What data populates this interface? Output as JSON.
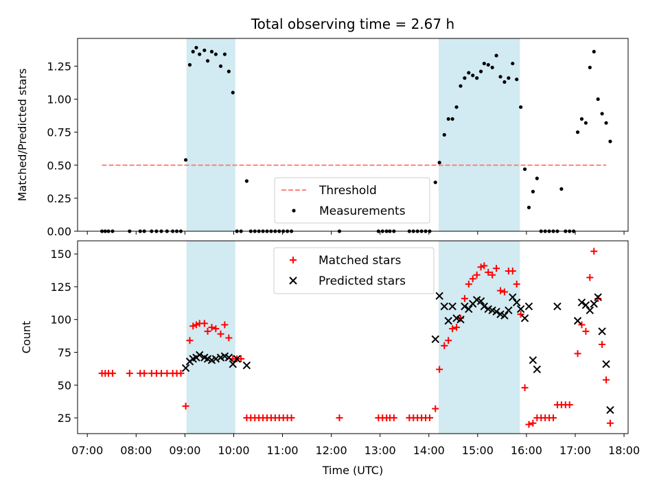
{
  "figure": {
    "title": "Total observing time = 2.67 h",
    "xlabel": "Time (UTC)"
  },
  "colors": {
    "shade": "#add8e6",
    "threshold": "#ff7f7f",
    "matched": "#ff0000",
    "predicted": "#000000",
    "measurement": "#000000"
  },
  "x_ticks": [
    "07:00",
    "08:00",
    "09:00",
    "10:00",
    "11:00",
    "12:00",
    "13:00",
    "14:00",
    "15:00",
    "16:00",
    "17:00",
    "18:00"
  ],
  "shaded_intervals_utc": [
    [
      "09:02",
      "10:02"
    ],
    [
      "14:12",
      "15:52"
    ]
  ],
  "chart_data": [
    {
      "type": "scatter",
      "ylabel": "Matched/Predicted stars",
      "xlim": [
        "06:48",
        "18:05"
      ],
      "ylim": [
        0,
        1.46
      ],
      "yticks": [
        "0.00",
        "0.25",
        "0.50",
        "0.75",
        "1.00",
        "1.25"
      ],
      "legend": {
        "placement": "lower center",
        "entries": [
          "Threshold",
          "Measurements"
        ]
      },
      "threshold": {
        "name": "Threshold",
        "value": 0.5,
        "x_range": [
          "07:18",
          "17:38"
        ]
      },
      "series": [
        {
          "name": "Measurements",
          "marker": "dot",
          "points": [
            [
              "07:18",
              0
            ],
            [
              "07:22",
              0
            ],
            [
              "07:26",
              0
            ],
            [
              "07:31",
              0
            ],
            [
              "07:52",
              0
            ],
            [
              "08:05",
              0
            ],
            [
              "08:10",
              0
            ],
            [
              "08:19",
              0
            ],
            [
              "08:25",
              0
            ],
            [
              "08:31",
              0
            ],
            [
              "08:38",
              0
            ],
            [
              "08:45",
              0
            ],
            [
              "08:50",
              0
            ],
            [
              "08:55",
              0
            ],
            [
              "09:01",
              0.54
            ],
            [
              "09:06",
              1.26
            ],
            [
              "09:10",
              1.36
            ],
            [
              "09:14",
              1.39
            ],
            [
              "09:18",
              1.34
            ],
            [
              "09:24",
              1.37
            ],
            [
              "09:28",
              1.29
            ],
            [
              "09:33",
              1.36
            ],
            [
              "09:38",
              1.34
            ],
            [
              "09:44",
              1.25
            ],
            [
              "09:49",
              1.34
            ],
            [
              "09:54",
              1.21
            ],
            [
              "09:59",
              1.05
            ],
            [
              "10:04",
              0
            ],
            [
              "10:09",
              0
            ],
            [
              "10:16",
              0.38
            ],
            [
              "10:21",
              0
            ],
            [
              "10:26",
              0
            ],
            [
              "10:31",
              0
            ],
            [
              "10:36",
              0
            ],
            [
              "10:41",
              0
            ],
            [
              "10:46",
              0
            ],
            [
              "10:51",
              0
            ],
            [
              "10:56",
              0
            ],
            [
              "11:01",
              0
            ],
            [
              "11:06",
              0
            ],
            [
              "11:11",
              0
            ],
            [
              "12:10",
              0
            ],
            [
              "12:58",
              0
            ],
            [
              "13:03",
              0
            ],
            [
              "13:08",
              0
            ],
            [
              "13:12",
              0
            ],
            [
              "13:17",
              0
            ],
            [
              "13:36",
              0
            ],
            [
              "13:41",
              0
            ],
            [
              "13:46",
              0
            ],
            [
              "13:51",
              0
            ],
            [
              "13:56",
              0
            ],
            [
              "14:01",
              0
            ],
            [
              "14:08",
              0.37
            ],
            [
              "14:13",
              0.52
            ],
            [
              "14:19",
              0.73
            ],
            [
              "14:24",
              0.85
            ],
            [
              "14:29",
              0.85
            ],
            [
              "14:34",
              0.94
            ],
            [
              "14:39",
              1.1
            ],
            [
              "14:44",
              1.16
            ],
            [
              "14:49",
              1.2
            ],
            [
              "14:54",
              1.18
            ],
            [
              "14:59",
              1.16
            ],
            [
              "15:04",
              1.21
            ],
            [
              "15:08",
              1.27
            ],
            [
              "15:13",
              1.26
            ],
            [
              "15:18",
              1.24
            ],
            [
              "15:23",
              1.33
            ],
            [
              "15:28",
              1.17
            ],
            [
              "15:33",
              1.13
            ],
            [
              "15:38",
              1.16
            ],
            [
              "15:43",
              1.27
            ],
            [
              "15:48",
              1.15
            ],
            [
              "15:53",
              0.94
            ],
            [
              "15:58",
              0.47
            ],
            [
              "16:03",
              0.18
            ],
            [
              "16:08",
              0.3
            ],
            [
              "16:13",
              0.4
            ],
            [
              "16:18",
              0
            ],
            [
              "16:23",
              0
            ],
            [
              "16:28",
              0
            ],
            [
              "16:33",
              0
            ],
            [
              "16:38",
              0
            ],
            [
              "16:43",
              0.32
            ],
            [
              "16:48",
              0
            ],
            [
              "16:53",
              0
            ],
            [
              "16:58",
              0
            ],
            [
              "17:03",
              0.75
            ],
            [
              "17:08",
              0.85
            ],
            [
              "17:13",
              0.82
            ],
            [
              "17:18",
              1.24
            ],
            [
              "17:23",
              1.36
            ],
            [
              "17:28",
              1.0
            ],
            [
              "17:33",
              0.89
            ],
            [
              "17:38",
              0.82
            ],
            [
              "17:43",
              0.68
            ]
          ]
        }
      ]
    },
    {
      "type": "scatter",
      "ylabel": "Count",
      "xlim": [
        "06:48",
        "18:05"
      ],
      "ylim": [
        13,
        160
      ],
      "yticks": [
        "25",
        "50",
        "75",
        "100",
        "125",
        "150"
      ],
      "legend": {
        "placement": "upper center",
        "entries": [
          "Matched stars",
          "Predicted stars"
        ]
      },
      "series": [
        {
          "name": "Matched stars",
          "marker": "plus",
          "points": [
            [
              "07:18",
              59
            ],
            [
              "07:22",
              59
            ],
            [
              "07:26",
              59
            ],
            [
              "07:31",
              59
            ],
            [
              "07:52",
              59
            ],
            [
              "08:05",
              59
            ],
            [
              "08:10",
              59
            ],
            [
              "08:19",
              59
            ],
            [
              "08:25",
              59
            ],
            [
              "08:31",
              59
            ],
            [
              "08:38",
              59
            ],
            [
              "08:45",
              59
            ],
            [
              "08:50",
              59
            ],
            [
              "08:55",
              59
            ],
            [
              "09:01",
              34
            ],
            [
              "09:06",
              84
            ],
            [
              "09:10",
              95
            ],
            [
              "09:14",
              96
            ],
            [
              "09:18",
              97
            ],
            [
              "09:24",
              97
            ],
            [
              "09:28",
              91
            ],
            [
              "09:33",
              94
            ],
            [
              "09:38",
              93
            ],
            [
              "09:44",
              89
            ],
            [
              "09:49",
              96
            ],
            [
              "09:54",
              86
            ],
            [
              "09:59",
              70
            ],
            [
              "10:04",
              70
            ],
            [
              "10:09",
              70
            ],
            [
              "10:16",
              25
            ],
            [
              "10:21",
              25
            ],
            [
              "10:26",
              25
            ],
            [
              "10:31",
              25
            ],
            [
              "10:36",
              25
            ],
            [
              "10:41",
              25
            ],
            [
              "10:46",
              25
            ],
            [
              "10:51",
              25
            ],
            [
              "10:56",
              25
            ],
            [
              "11:01",
              25
            ],
            [
              "11:06",
              25
            ],
            [
              "11:11",
              25
            ],
            [
              "12:10",
              25
            ],
            [
              "12:58",
              25
            ],
            [
              "13:03",
              25
            ],
            [
              "13:08",
              25
            ],
            [
              "13:12",
              25
            ],
            [
              "13:17",
              25
            ],
            [
              "13:36",
              25
            ],
            [
              "13:41",
              25
            ],
            [
              "13:46",
              25
            ],
            [
              "13:51",
              25
            ],
            [
              "13:56",
              25
            ],
            [
              "14:01",
              25
            ],
            [
              "14:08",
              32
            ],
            [
              "14:13",
              62
            ],
            [
              "14:19",
              80
            ],
            [
              "14:24",
              84
            ],
            [
              "14:29",
              93
            ],
            [
              "14:34",
              94
            ],
            [
              "14:39",
              101
            ],
            [
              "14:44",
              116
            ],
            [
              "14:49",
              127
            ],
            [
              "14:54",
              131
            ],
            [
              "14:59",
              134
            ],
            [
              "15:04",
              140
            ],
            [
              "15:08",
              141
            ],
            [
              "15:13",
              136
            ],
            [
              "15:18",
              134
            ],
            [
              "15:23",
              139
            ],
            [
              "15:28",
              122
            ],
            [
              "15:33",
              121
            ],
            [
              "15:38",
              137
            ],
            [
              "15:43",
              137
            ],
            [
              "15:48",
              127
            ],
            [
              "15:53",
              104
            ],
            [
              "15:58",
              48
            ],
            [
              "16:03",
              20
            ],
            [
              "16:08",
              21
            ],
            [
              "16:13",
              25
            ],
            [
              "16:18",
              25
            ],
            [
              "16:23",
              25
            ],
            [
              "16:28",
              25
            ],
            [
              "16:33",
              25
            ],
            [
              "16:38",
              35
            ],
            [
              "16:43",
              35
            ],
            [
              "16:48",
              35
            ],
            [
              "16:53",
              35
            ],
            [
              "17:03",
              74
            ],
            [
              "17:08",
              96
            ],
            [
              "17:13",
              91
            ],
            [
              "17:18",
              132
            ],
            [
              "17:23",
              152
            ],
            [
              "17:28",
              116
            ],
            [
              "17:33",
              81
            ],
            [
              "17:38",
              54
            ],
            [
              "17:43",
              21
            ]
          ]
        },
        {
          "name": "Predicted stars",
          "marker": "x",
          "points": [
            [
              "09:01",
              63
            ],
            [
              "09:06",
              68
            ],
            [
              "09:10",
              70
            ],
            [
              "09:14",
              71
            ],
            [
              "09:18",
              73
            ],
            [
              "09:24",
              71
            ],
            [
              "09:28",
              70
            ],
            [
              "09:33",
              69
            ],
            [
              "09:38",
              70
            ],
            [
              "09:44",
              71
            ],
            [
              "09:49",
              72
            ],
            [
              "09:54",
              71
            ],
            [
              "09:59",
              66
            ],
            [
              "10:04",
              70
            ],
            [
              "10:16",
              65
            ],
            [
              "14:08",
              85
            ],
            [
              "14:13",
              118
            ],
            [
              "14:19",
              110
            ],
            [
              "14:24",
              99
            ],
            [
              "14:29",
              110
            ],
            [
              "14:34",
              101
            ],
            [
              "14:39",
              100
            ],
            [
              "14:44",
              110
            ],
            [
              "14:49",
              108
            ],
            [
              "14:54",
              112
            ],
            [
              "14:59",
              115
            ],
            [
              "15:04",
              114
            ],
            [
              "15:08",
              110
            ],
            [
              "15:13",
              108
            ],
            [
              "15:18",
              107
            ],
            [
              "15:23",
              106
            ],
            [
              "15:28",
              104
            ],
            [
              "15:33",
              103
            ],
            [
              "15:38",
              107
            ],
            [
              "15:43",
              117
            ],
            [
              "15:48",
              113
            ],
            [
              "15:53",
              108
            ],
            [
              "15:58",
              101
            ],
            [
              "16:03",
              110
            ],
            [
              "16:08",
              69
            ],
            [
              "16:13",
              62
            ],
            [
              "16:38",
              110
            ],
            [
              "17:03",
              99
            ],
            [
              "17:08",
              113
            ],
            [
              "17:13",
              111
            ],
            [
              "17:18",
              107
            ],
            [
              "17:23",
              112
            ],
            [
              "17:28",
              117
            ],
            [
              "17:33",
              91
            ],
            [
              "17:38",
              66
            ],
            [
              "17:43",
              31
            ]
          ]
        }
      ]
    }
  ]
}
